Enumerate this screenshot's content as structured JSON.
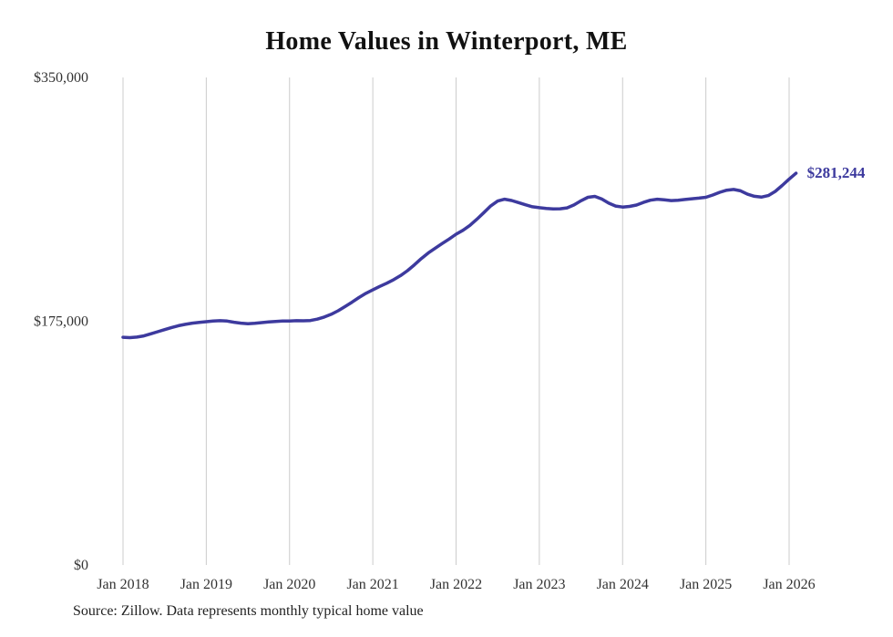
{
  "source_note": "Source: Zillow. Data represents monthly typical home value",
  "colors": {
    "line": "#3d3a9e",
    "grid": "#cccccc",
    "axis_text": "#333333",
    "title_text": "#111111",
    "end_label_text": "#3d3a9e"
  },
  "chart_data": {
    "type": "line",
    "title": "Home Values in Winterport, ME",
    "xlabel": "",
    "ylabel": "",
    "ylim": [
      0,
      350000
    ],
    "grid": "vertical-only",
    "legend": "none",
    "x_unit": "month",
    "x_range": [
      "Jan 2018",
      "Feb 2026"
    ],
    "x_tick_labels": [
      "Jan 2018",
      "Jan 2019",
      "Jan 2020",
      "Jan 2021",
      "Jan 2022",
      "Jan 2023",
      "Jan 2024",
      "Jan 2025",
      "Jan 2026"
    ],
    "y_ticks": [
      {
        "label": "$350,000",
        "value": 350000
      },
      {
        "label": "$175,000",
        "value": 175000
      },
      {
        "label": "$0",
        "value": 0
      }
    ],
    "end_label": {
      "text": "$281,244",
      "value": 281244
    },
    "series": [
      {
        "name": "Monthly typical home value",
        "color": "#3d3a9e",
        "values": [
          163500,
          163200,
          163600,
          164500,
          166000,
          167500,
          169000,
          170500,
          171800,
          172800,
          173600,
          174200,
          174700,
          175100,
          175400,
          175100,
          174300,
          173600,
          173200,
          173500,
          174000,
          174500,
          174900,
          175100,
          175200,
          175400,
          175300,
          175500,
          176500,
          178000,
          180000,
          182500,
          185500,
          188700,
          192000,
          195000,
          197500,
          200000,
          202300,
          204800,
          207800,
          211300,
          215500,
          220000,
          224000,
          227500,
          230800,
          234000,
          237500,
          240300,
          243800,
          248200,
          253000,
          257800,
          261300,
          262600,
          261700,
          260200,
          258600,
          257200,
          256500,
          256000,
          255600,
          255700,
          256400,
          258500,
          261500,
          264000,
          264600,
          262700,
          259800,
          257700,
          257000,
          257400,
          258400,
          260300,
          261900,
          262600,
          262200,
          261600,
          261900,
          262400,
          262900,
          263400,
          264000,
          265600,
          267600,
          269100,
          269600,
          268600,
          266200,
          264700,
          264100,
          265200,
          268200,
          272500,
          277000,
          281244
        ]
      }
    ]
  }
}
